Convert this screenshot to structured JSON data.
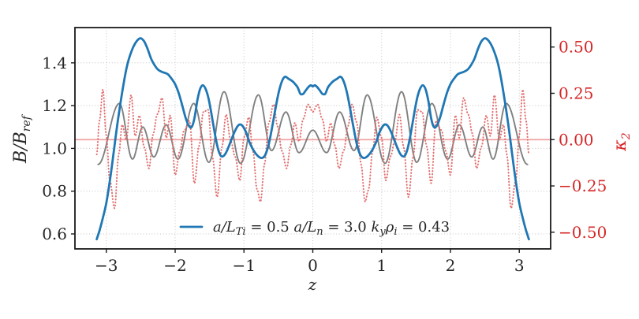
{
  "figure": {
    "xlabel": "z",
    "ylabel_left": {
      "main": "B/B",
      "sub": "ref"
    },
    "ylabel_right": {
      "main": "κ",
      "sub": "2"
    },
    "xlim": [
      -3.456,
      3.456
    ],
    "ylim_left": [
      0.53,
      1.565
    ],
    "ylim_right": [
      -0.59,
      0.605
    ],
    "x_ticks": [
      {
        "v": -3,
        "label": "−3"
      },
      {
        "v": -2,
        "label": "−2"
      },
      {
        "v": -1,
        "label": "−1"
      },
      {
        "v": 0,
        "label": "0"
      },
      {
        "v": 1,
        "label": "1"
      },
      {
        "v": 2,
        "label": "2"
      },
      {
        "v": 3,
        "label": "3"
      }
    ],
    "y_ticks_left": [
      {
        "v": 1.4,
        "label": "1.4"
      },
      {
        "v": 1.2,
        "label": "1.2"
      },
      {
        "v": 1.0,
        "label": "1.0"
      },
      {
        "v": 0.8,
        "label": "0.8"
      },
      {
        "v": 0.6,
        "label": "0.6"
      }
    ],
    "y_ticks_right": [
      {
        "v": 0.5,
        "label": "0.50"
      },
      {
        "v": 0.25,
        "label": "0.25"
      },
      {
        "v": 0.0,
        "label": "0.00"
      },
      {
        "v": -0.25,
        "label": "−0.25"
      },
      {
        "v": -0.5,
        "label": "−0.50"
      }
    ],
    "grid": true,
    "colors": {
      "blue": "#1f77b4",
      "gray": "#808080",
      "red_dotted": "#e37070",
      "zero_line": "#f09c9c",
      "right_axis_text": "#d62728",
      "axis_text": "#262626",
      "frame": "#1a1a1a",
      "gridline": "#c4c4c4",
      "background": "#ffffff"
    },
    "legend": {
      "label_plain": "a/L_Ti = 0.5  a/L_n = 3.0  k_y ρ_i = 0.43",
      "segments": [
        {
          "t": "a/L",
          "i": true
        },
        {
          "t": "Ti",
          "i": true,
          "sub": true
        },
        {
          "t": " = 0.5 "
        },
        {
          "t": "a/L",
          "i": true
        },
        {
          "t": "n",
          "i": true,
          "sub": true
        },
        {
          "t": " = 3.0 "
        },
        {
          "t": "k",
          "i": true
        },
        {
          "t": "y",
          "i": true,
          "sub": true
        },
        {
          "t": "ρ",
          "i": true
        },
        {
          "t": "i",
          "i": true,
          "sub": true
        },
        {
          "t": " = 0.43"
        }
      ]
    }
  },
  "chart_data": {
    "type": "line",
    "xlabel": "z",
    "ylabel_left": "B/B_ref",
    "ylabel_right": "kappa_2",
    "series": [
      {
        "name": "zero-axhline",
        "axis": "right",
        "style": "solid",
        "color": "#f09c9c",
        "width": 1.6,
        "points": [
          [
            -3.456,
            0.0
          ],
          [
            3.456,
            0.0
          ]
        ]
      },
      {
        "name": "gray-oscillation",
        "axis": "left",
        "style": "solid",
        "color": "#808080",
        "width": 1.9,
        "interp": "cosine",
        "points": [
          [
            -3.12,
            0.925
          ],
          [
            -2.81,
            1.21
          ],
          [
            -2.62,
            0.95
          ],
          [
            -2.47,
            1.1
          ],
          [
            -2.31,
            0.96
          ],
          [
            -2.13,
            1.11
          ],
          [
            -1.96,
            0.95
          ],
          [
            -1.73,
            1.21
          ],
          [
            -1.51,
            0.935
          ],
          [
            -1.29,
            1.265
          ],
          [
            -1.05,
            0.93
          ],
          [
            -0.79,
            1.25
          ],
          [
            -0.6,
            0.99
          ],
          [
            -0.39,
            1.17
          ],
          [
            -0.2,
            0.98
          ],
          [
            0.0,
            1.085
          ],
          [
            0.2,
            0.98
          ],
          [
            0.39,
            1.17
          ],
          [
            0.6,
            0.99
          ],
          [
            0.79,
            1.25
          ],
          [
            1.05,
            0.93
          ],
          [
            1.29,
            1.265
          ],
          [
            1.51,
            0.935
          ],
          [
            1.73,
            1.21
          ],
          [
            1.96,
            0.95
          ],
          [
            2.13,
            1.11
          ],
          [
            2.31,
            0.96
          ],
          [
            2.47,
            1.1
          ],
          [
            2.62,
            0.95
          ],
          [
            2.81,
            1.21
          ],
          [
            3.12,
            0.925
          ]
        ]
      },
      {
        "name": "kappa2-dotted",
        "axis": "right",
        "style": "dotted",
        "color": "#e37070",
        "width": 2.0,
        "interp": "cosine",
        "points": [
          [
            -3.14,
            -0.08
          ],
          [
            -3.1,
            0.1
          ],
          [
            -3.05,
            0.27
          ],
          [
            -3.0,
            0.02
          ],
          [
            -2.95,
            -0.22
          ],
          [
            -2.88,
            -0.37
          ],
          [
            -2.82,
            -0.08
          ],
          [
            -2.77,
            0.08
          ],
          [
            -2.71,
            0.0
          ],
          [
            -2.64,
            0.24
          ],
          [
            -2.58,
            0.02
          ],
          [
            -2.52,
            0.13
          ],
          [
            -2.45,
            -0.04
          ],
          [
            -2.38,
            -0.155
          ],
          [
            -2.32,
            0.03
          ],
          [
            -2.26,
            0.135
          ],
          [
            -2.19,
            0.225
          ],
          [
            -2.13,
            0.01
          ],
          [
            -2.07,
            0.13
          ],
          [
            -2.0,
            -0.19
          ],
          [
            -1.93,
            -0.06
          ],
          [
            -1.87,
            0.05
          ],
          [
            -1.79,
            0.1
          ],
          [
            -1.72,
            -0.235
          ],
          [
            -1.65,
            -0.03
          ],
          [
            -1.59,
            0.15
          ],
          [
            -1.52,
            0.16
          ],
          [
            -1.46,
            -0.09
          ],
          [
            -1.39,
            -0.31
          ],
          [
            -1.32,
            -0.04
          ],
          [
            -1.26,
            0.135
          ],
          [
            -1.19,
            -0.01
          ],
          [
            -1.13,
            -0.09
          ],
          [
            -1.06,
            -0.22
          ],
          [
            -1.0,
            0.01
          ],
          [
            -0.93,
            0.12
          ],
          [
            -0.87,
            -0.06
          ],
          [
            -0.81,
            -0.27
          ],
          [
            -0.76,
            -0.335
          ],
          [
            -0.7,
            -0.13
          ],
          [
            -0.64,
            0.09
          ],
          [
            -0.57,
            0.19
          ],
          [
            -0.51,
            0.07
          ],
          [
            -0.45,
            -0.06
          ],
          [
            -0.38,
            -0.155
          ],
          [
            -0.32,
            -0.03
          ],
          [
            -0.26,
            0.09
          ],
          [
            -0.2,
            -0.01
          ],
          [
            -0.14,
            0.11
          ],
          [
            -0.07,
            0.19
          ],
          [
            0.0,
            0.15
          ],
          [
            0.07,
            0.19
          ],
          [
            0.14,
            0.11
          ],
          [
            0.2,
            -0.01
          ],
          [
            0.26,
            0.09
          ],
          [
            0.32,
            -0.03
          ],
          [
            0.38,
            -0.155
          ],
          [
            0.45,
            -0.06
          ],
          [
            0.51,
            0.07
          ],
          [
            0.57,
            0.19
          ],
          [
            0.64,
            0.09
          ],
          [
            0.7,
            -0.13
          ],
          [
            0.76,
            -0.335
          ],
          [
            0.81,
            -0.27
          ],
          [
            0.87,
            -0.06
          ],
          [
            0.93,
            0.12
          ],
          [
            1.0,
            0.01
          ],
          [
            1.06,
            -0.22
          ],
          [
            1.13,
            -0.09
          ],
          [
            1.19,
            -0.01
          ],
          [
            1.26,
            0.135
          ],
          [
            1.32,
            -0.04
          ],
          [
            1.39,
            -0.31
          ],
          [
            1.46,
            -0.09
          ],
          [
            1.52,
            0.16
          ],
          [
            1.59,
            0.15
          ],
          [
            1.65,
            -0.03
          ],
          [
            1.72,
            -0.235
          ],
          [
            1.79,
            0.1
          ],
          [
            1.87,
            0.05
          ],
          [
            1.93,
            -0.06
          ],
          [
            2.0,
            -0.19
          ],
          [
            2.07,
            0.13
          ],
          [
            2.13,
            0.01
          ],
          [
            2.19,
            0.225
          ],
          [
            2.26,
            0.135
          ],
          [
            2.32,
            0.03
          ],
          [
            2.38,
            -0.155
          ],
          [
            2.45,
            -0.04
          ],
          [
            2.52,
            0.13
          ],
          [
            2.58,
            0.02
          ],
          [
            2.64,
            0.24
          ],
          [
            2.71,
            0.0
          ],
          [
            2.77,
            0.08
          ],
          [
            2.82,
            -0.08
          ],
          [
            2.88,
            -0.37
          ],
          [
            2.95,
            -0.22
          ],
          [
            3.0,
            0.02
          ],
          [
            3.05,
            0.27
          ],
          [
            3.1,
            0.1
          ],
          [
            3.14,
            -0.08
          ]
        ]
      },
      {
        "name": "B-over-Bref",
        "axis": "left",
        "style": "solid",
        "color": "#1f77b4",
        "width": 2.8,
        "legend": true,
        "points": [
          [
            -3.14,
            0.575
          ],
          [
            -3.1,
            0.615
          ],
          [
            -3.05,
            0.675
          ],
          [
            -3.0,
            0.745
          ],
          [
            -2.95,
            0.845
          ],
          [
            -2.9,
            0.965
          ],
          [
            -2.85,
            1.09
          ],
          [
            -2.8,
            1.2
          ],
          [
            -2.75,
            1.3
          ],
          [
            -2.7,
            1.385
          ],
          [
            -2.65,
            1.44
          ],
          [
            -2.6,
            1.48
          ],
          [
            -2.55,
            1.505
          ],
          [
            -2.5,
            1.515
          ],
          [
            -2.45,
            1.5
          ],
          [
            -2.4,
            1.465
          ],
          [
            -2.35,
            1.42
          ],
          [
            -2.3,
            1.39
          ],
          [
            -2.26,
            1.372
          ],
          [
            -2.22,
            1.362
          ],
          [
            -2.18,
            1.356
          ],
          [
            -2.14,
            1.352
          ],
          [
            -2.1,
            1.345
          ],
          [
            -2.05,
            1.325
          ],
          [
            -2.0,
            1.3
          ],
          [
            -1.95,
            1.26
          ],
          [
            -1.9,
            1.205
          ],
          [
            -1.85,
            1.145
          ],
          [
            -1.8,
            1.105
          ],
          [
            -1.76,
            1.1
          ],
          [
            -1.72,
            1.14
          ],
          [
            -1.68,
            1.22
          ],
          [
            -1.64,
            1.275
          ],
          [
            -1.6,
            1.295
          ],
          [
            -1.56,
            1.28
          ],
          [
            -1.52,
            1.24
          ],
          [
            -1.48,
            1.175
          ],
          [
            -1.44,
            1.1
          ],
          [
            -1.4,
            1.03
          ],
          [
            -1.36,
            0.98
          ],
          [
            -1.32,
            0.962
          ],
          [
            -1.27,
            0.975
          ],
          [
            -1.22,
            1.01
          ],
          [
            -1.16,
            1.06
          ],
          [
            -1.1,
            1.1
          ],
          [
            -1.06,
            1.112
          ],
          [
            -1.02,
            1.105
          ],
          [
            -0.97,
            1.075
          ],
          [
            -0.92,
            1.03
          ],
          [
            -0.86,
            0.99
          ],
          [
            -0.8,
            0.965
          ],
          [
            -0.74,
            0.955
          ],
          [
            -0.69,
            0.97
          ],
          [
            -0.64,
            1.02
          ],
          [
            -0.59,
            1.1
          ],
          [
            -0.54,
            1.19
          ],
          [
            -0.49,
            1.27
          ],
          [
            -0.44,
            1.32
          ],
          [
            -0.4,
            1.335
          ],
          [
            -0.35,
            1.325
          ],
          [
            -0.3,
            1.315
          ],
          [
            -0.26,
            1.302
          ],
          [
            -0.22,
            1.285
          ],
          [
            -0.18,
            1.255
          ],
          [
            -0.14,
            1.255
          ],
          [
            -0.1,
            1.272
          ],
          [
            -0.06,
            1.288
          ],
          [
            -0.03,
            1.295
          ],
          [
            0.0,
            1.29
          ],
          [
            0.03,
            1.295
          ],
          [
            0.06,
            1.288
          ],
          [
            0.1,
            1.272
          ],
          [
            0.14,
            1.255
          ],
          [
            0.18,
            1.255
          ],
          [
            0.22,
            1.285
          ],
          [
            0.26,
            1.302
          ],
          [
            0.3,
            1.315
          ],
          [
            0.35,
            1.325
          ],
          [
            0.4,
            1.335
          ],
          [
            0.44,
            1.32
          ],
          [
            0.49,
            1.27
          ],
          [
            0.54,
            1.19
          ],
          [
            0.59,
            1.1
          ],
          [
            0.64,
            1.02
          ],
          [
            0.69,
            0.97
          ],
          [
            0.74,
            0.955
          ],
          [
            0.8,
            0.965
          ],
          [
            0.86,
            0.99
          ],
          [
            0.92,
            1.03
          ],
          [
            0.97,
            1.075
          ],
          [
            1.02,
            1.105
          ],
          [
            1.06,
            1.112
          ],
          [
            1.1,
            1.1
          ],
          [
            1.16,
            1.06
          ],
          [
            1.22,
            1.01
          ],
          [
            1.27,
            0.975
          ],
          [
            1.32,
            0.962
          ],
          [
            1.36,
            0.98
          ],
          [
            1.4,
            1.03
          ],
          [
            1.44,
            1.1
          ],
          [
            1.48,
            1.175
          ],
          [
            1.52,
            1.24
          ],
          [
            1.56,
            1.28
          ],
          [
            1.6,
            1.295
          ],
          [
            1.64,
            1.275
          ],
          [
            1.68,
            1.22
          ],
          [
            1.72,
            1.14
          ],
          [
            1.76,
            1.1
          ],
          [
            1.8,
            1.105
          ],
          [
            1.85,
            1.145
          ],
          [
            1.9,
            1.205
          ],
          [
            1.95,
            1.26
          ],
          [
            2.0,
            1.3
          ],
          [
            2.05,
            1.325
          ],
          [
            2.1,
            1.345
          ],
          [
            2.14,
            1.352
          ],
          [
            2.18,
            1.356
          ],
          [
            2.22,
            1.362
          ],
          [
            2.26,
            1.372
          ],
          [
            2.3,
            1.39
          ],
          [
            2.35,
            1.42
          ],
          [
            2.4,
            1.465
          ],
          [
            2.45,
            1.5
          ],
          [
            2.5,
            1.515
          ],
          [
            2.55,
            1.505
          ],
          [
            2.6,
            1.48
          ],
          [
            2.65,
            1.44
          ],
          [
            2.7,
            1.385
          ],
          [
            2.75,
            1.3
          ],
          [
            2.8,
            1.2
          ],
          [
            2.85,
            1.09
          ],
          [
            2.9,
            0.965
          ],
          [
            2.95,
            0.845
          ],
          [
            3.0,
            0.745
          ],
          [
            3.05,
            0.675
          ],
          [
            3.1,
            0.615
          ],
          [
            3.14,
            0.575
          ]
        ]
      }
    ]
  }
}
